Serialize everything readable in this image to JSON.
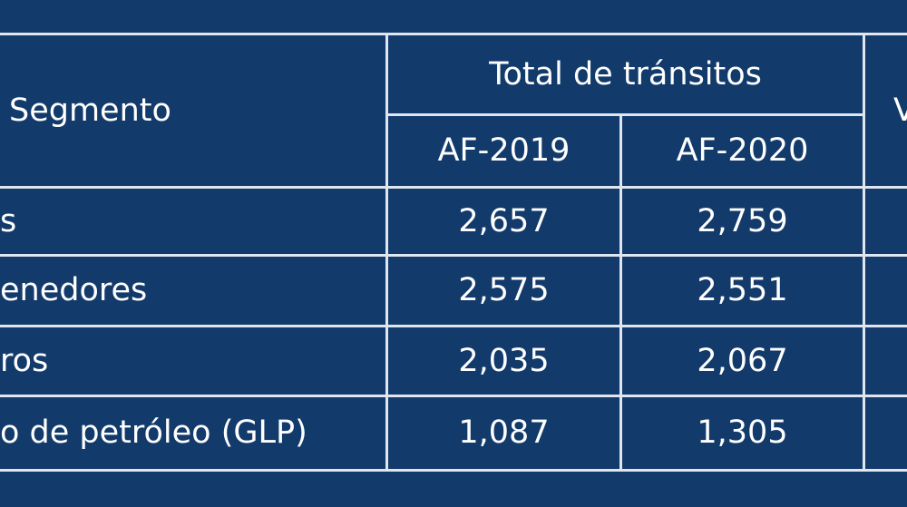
{
  "table": {
    "header": {
      "segment": "Segmento",
      "group": "Total de tránsitos",
      "years": [
        "AF-2019",
        "AF-2020"
      ],
      "extra": "V"
    },
    "rows": [
      {
        "segment": "s",
        "af2019": "2,657",
        "af2020": "2,759"
      },
      {
        "segment": "enedores",
        "af2019": "2,575",
        "af2020": "2,551"
      },
      {
        "segment": "ros",
        "af2019": "2,035",
        "af2020": "2,067"
      },
      {
        "segment": "o de petróleo  (GLP)",
        "af2019": "1,087",
        "af2020": "1,305"
      }
    ]
  },
  "colors": {
    "background": "#123a6b",
    "lines": "#dfe6ef",
    "text": "#ffffff"
  }
}
